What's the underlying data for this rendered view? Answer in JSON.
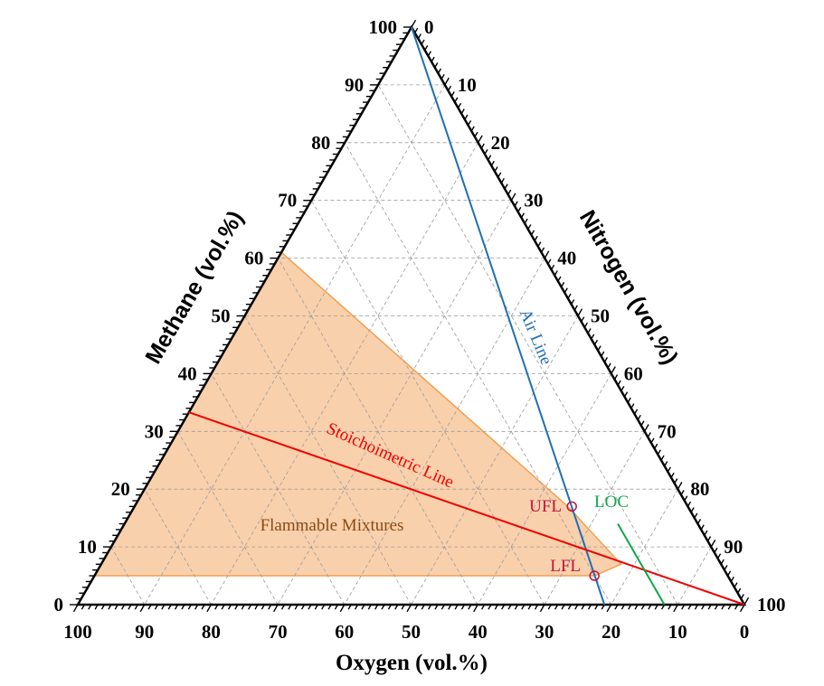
{
  "axes": {
    "methane": {
      "title": "Methane (vol.%)",
      "ticks": [
        "0",
        "10",
        "20",
        "30",
        "40",
        "50",
        "60",
        "70",
        "80",
        "90",
        "100"
      ]
    },
    "nitrogen": {
      "title": "Nitrogen (vol.%)",
      "ticks": [
        "0",
        "10",
        "20",
        "30",
        "40",
        "50",
        "60",
        "70",
        "80",
        "90",
        "100"
      ]
    },
    "oxygen": {
      "title": "Oxygen (vol.%)",
      "ticks": [
        "100",
        "90",
        "80",
        "70",
        "60",
        "50",
        "40",
        "30",
        "20",
        "10",
        "0"
      ]
    }
  },
  "labels": {
    "air_line": "Air Line",
    "stoich_line": "Stoichoimetric Line",
    "ufl": "UFL",
    "lfl": "LFL",
    "loc": "LOC",
    "flammable": "Flammable Mixtures"
  },
  "colors": {
    "air_line": "#1f6fb8",
    "stoich_line": "#ee0000",
    "loc_line": "#10a64a",
    "point_marker": "#c0143c",
    "flammable_fill": "#f9d0ac",
    "flammable_edge": "#f0a050",
    "flammable_text": "#8a4a10",
    "grid": "#9a9a9a"
  },
  "diagram": {
    "components": [
      "Methane",
      "Nitrogen",
      "Oxygen"
    ],
    "grid_step_percent": 10,
    "flammable_region": [
      {
        "methane": 5,
        "oxygen": 95
      },
      {
        "methane": 61,
        "oxygen": 39
      },
      {
        "methane": 17,
        "oxygen": 18
      },
      {
        "methane": 7,
        "oxygen": 15
      },
      {
        "methane": 5,
        "oxygen": 20
      }
    ],
    "air_line": [
      {
        "methane": 100,
        "oxygen": 0
      },
      {
        "methane": 0,
        "oxygen": 21
      }
    ],
    "stoichiometric_line": [
      {
        "methane": 33.3,
        "oxygen": 66.7
      },
      {
        "methane": 0,
        "oxygen": 0
      }
    ],
    "loc_line": [
      {
        "methane": 14,
        "oxygen": 12
      },
      {
        "methane": 0,
        "oxygen": 12
      }
    ],
    "points": {
      "ufl": {
        "methane": 17,
        "oxygen": 17.4
      },
      "lfl": {
        "methane": 5,
        "oxygen": 20
      }
    }
  }
}
